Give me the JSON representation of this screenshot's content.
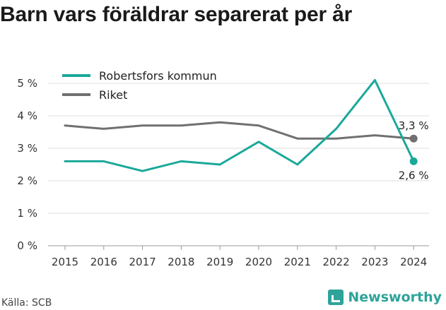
{
  "title": "Barn vars föräldrar separerat per år",
  "source": "Källa: SCB",
  "brand": "Newsworthy",
  "colors": {
    "robertsfors": "#1aa99a",
    "riket": "#707070",
    "grid": "#dddddd"
  },
  "chart_data": {
    "type": "line",
    "title": "Barn vars föräldrar separerat per år",
    "x": [
      "2015",
      "2016",
      "2017",
      "2018",
      "2019",
      "2020",
      "2021",
      "2022",
      "2023",
      "2024"
    ],
    "ylim": [
      0,
      5
    ],
    "yticks": [
      0,
      1,
      2,
      3,
      4,
      5
    ],
    "ytick_labels": [
      "0 %",
      "1 %",
      "2 %",
      "3 %",
      "4 %",
      "5 %"
    ],
    "grid": true,
    "legend_position": "top-left",
    "series": [
      {
        "name": "Robertsfors kommun",
        "color": "#1aa99a",
        "values": [
          2.6,
          2.6,
          2.3,
          2.6,
          2.5,
          3.2,
          2.5,
          3.6,
          5.1,
          2.6
        ],
        "end_label": "2,6 %"
      },
      {
        "name": "Riket",
        "color": "#707070",
        "values": [
          3.7,
          3.6,
          3.7,
          3.7,
          3.8,
          3.7,
          3.3,
          3.3,
          3.4,
          3.3
        ],
        "end_label": "3,3 %"
      }
    ]
  }
}
